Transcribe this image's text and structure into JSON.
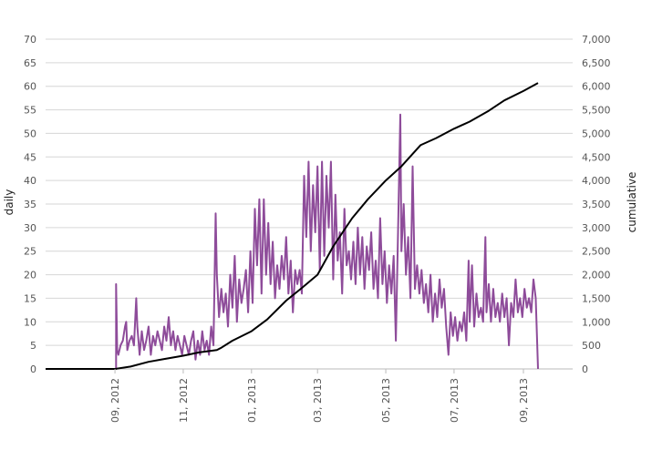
{
  "chart_data": {
    "type": "line",
    "y_left": {
      "label": "daily",
      "ticks": [
        0,
        5,
        10,
        15,
        20,
        25,
        30,
        35,
        40,
        45,
        50,
        55,
        60,
        65,
        70
      ],
      "tick_labels": [
        "0",
        "5",
        "10",
        "15",
        "20",
        "25",
        "30",
        "35",
        "40",
        "45",
        "50",
        "55",
        "60",
        "65",
        "70"
      ],
      "range": [
        0,
        70
      ]
    },
    "y_right": {
      "label": "cumulative",
      "ticks": [
        0,
        500,
        1000,
        1500,
        2000,
        2500,
        3000,
        3500,
        4000,
        4500,
        5000,
        5500,
        6000,
        6500,
        7000
      ],
      "tick_labels": [
        "0",
        "500",
        "1,000",
        "1,500",
        "2,000",
        "2,500",
        "3,000",
        "3,500",
        "4,000",
        "4,500",
        "5,000",
        "5,500",
        "6,000",
        "6,500",
        "7,000"
      ],
      "range": [
        0,
        7000
      ]
    },
    "x_axis": {
      "range": [
        "2012-07-01",
        "2013-10-15"
      ],
      "ticks": [
        "2012-09-01",
        "2012-11-01",
        "2013-01-01",
        "2013-03-01",
        "2013-05-01",
        "2013-07-01",
        "2013-09-01"
      ],
      "tick_labels": [
        "09, 2012",
        "11, 2012",
        "01, 2013",
        "03, 2013",
        "05, 2013",
        "07, 2013",
        "09, 2013"
      ]
    },
    "grid": "horizontal",
    "series": [
      {
        "color": "#8e4c9a",
        "axis": "left",
        "points": [
          [
            "2012-09-02",
            0
          ],
          [
            "2012-09-02",
            18
          ],
          [
            "2012-09-03",
            4
          ],
          [
            "2012-09-04",
            3
          ],
          [
            "2012-09-06",
            5
          ],
          [
            "2012-09-08",
            6
          ],
          [
            "2012-09-10",
            9
          ],
          [
            "2012-09-11",
            10
          ],
          [
            "2012-09-12",
            4
          ],
          [
            "2012-09-14",
            6
          ],
          [
            "2012-09-16",
            7
          ],
          [
            "2012-09-18",
            5
          ],
          [
            "2012-09-20",
            15
          ],
          [
            "2012-09-21",
            9
          ],
          [
            "2012-09-23",
            3
          ],
          [
            "2012-09-25",
            8
          ],
          [
            "2012-09-27",
            4
          ],
          [
            "2012-09-29",
            6
          ],
          [
            "2012-10-01",
            9
          ],
          [
            "2012-10-03",
            3
          ],
          [
            "2012-10-05",
            7
          ],
          [
            "2012-10-07",
            5
          ],
          [
            "2012-10-09",
            8
          ],
          [
            "2012-10-11",
            6
          ],
          [
            "2012-10-13",
            4
          ],
          [
            "2012-10-15",
            9
          ],
          [
            "2012-10-17",
            6
          ],
          [
            "2012-10-19",
            11
          ],
          [
            "2012-10-21",
            5
          ],
          [
            "2012-10-23",
            8
          ],
          [
            "2012-10-25",
            4
          ],
          [
            "2012-10-27",
            7
          ],
          [
            "2012-10-29",
            5
          ],
          [
            "2012-10-31",
            3
          ],
          [
            "2012-11-02",
            7
          ],
          [
            "2012-11-04",
            5
          ],
          [
            "2012-11-06",
            3
          ],
          [
            "2012-11-08",
            6
          ],
          [
            "2012-11-10",
            8
          ],
          [
            "2012-11-12",
            2
          ],
          [
            "2012-11-14",
            6
          ],
          [
            "2012-11-16",
            3
          ],
          [
            "2012-11-18",
            8
          ],
          [
            "2012-11-20",
            4
          ],
          [
            "2012-11-22",
            6
          ],
          [
            "2012-11-24",
            3
          ],
          [
            "2012-11-26",
            9
          ],
          [
            "2012-11-28",
            5
          ],
          [
            "2012-11-30",
            33
          ],
          [
            "2012-12-01",
            20
          ],
          [
            "2012-12-03",
            11
          ],
          [
            "2012-12-05",
            17
          ],
          [
            "2012-12-07",
            12
          ],
          [
            "2012-12-09",
            16
          ],
          [
            "2012-12-11",
            9
          ],
          [
            "2012-12-13",
            20
          ],
          [
            "2012-12-15",
            13
          ],
          [
            "2012-12-17",
            24
          ],
          [
            "2012-12-19",
            10
          ],
          [
            "2012-12-21",
            19
          ],
          [
            "2012-12-23",
            14
          ],
          [
            "2012-12-25",
            17
          ],
          [
            "2012-12-27",
            21
          ],
          [
            "2012-12-29",
            12
          ],
          [
            "2012-12-31",
            25
          ],
          [
            "2013-01-02",
            14
          ],
          [
            "2013-01-04",
            34
          ],
          [
            "2013-01-06",
            22
          ],
          [
            "2013-01-08",
            36
          ],
          [
            "2013-01-10",
            16
          ],
          [
            "2013-01-12",
            36
          ],
          [
            "2013-01-14",
            20
          ],
          [
            "2013-01-16",
            31
          ],
          [
            "2013-01-18",
            18
          ],
          [
            "2013-01-20",
            27
          ],
          [
            "2013-01-22",
            15
          ],
          [
            "2013-01-24",
            22
          ],
          [
            "2013-01-26",
            17
          ],
          [
            "2013-01-28",
            24
          ],
          [
            "2013-01-30",
            19
          ],
          [
            "2013-02-01",
            28
          ],
          [
            "2013-02-03",
            16
          ],
          [
            "2013-02-05",
            23
          ],
          [
            "2013-02-07",
            12
          ],
          [
            "2013-02-09",
            21
          ],
          [
            "2013-02-11",
            18
          ],
          [
            "2013-02-13",
            21
          ],
          [
            "2013-02-15",
            16
          ],
          [
            "2013-02-17",
            41
          ],
          [
            "2013-02-19",
            28
          ],
          [
            "2013-02-21",
            44
          ],
          [
            "2013-02-23",
            25
          ],
          [
            "2013-02-25",
            39
          ],
          [
            "2013-02-27",
            29
          ],
          [
            "2013-03-01",
            43
          ],
          [
            "2013-03-03",
            21
          ],
          [
            "2013-03-05",
            44
          ],
          [
            "2013-03-07",
            24
          ],
          [
            "2013-03-09",
            41
          ],
          [
            "2013-03-11",
            30
          ],
          [
            "2013-03-13",
            44
          ],
          [
            "2013-03-15",
            19
          ],
          [
            "2013-03-17",
            37
          ],
          [
            "2013-03-19",
            23
          ],
          [
            "2013-03-21",
            29
          ],
          [
            "2013-03-23",
            16
          ],
          [
            "2013-03-25",
            34
          ],
          [
            "2013-03-27",
            22
          ],
          [
            "2013-03-29",
            25
          ],
          [
            "2013-03-31",
            19
          ],
          [
            "2013-04-02",
            27
          ],
          [
            "2013-04-04",
            18
          ],
          [
            "2013-04-06",
            30
          ],
          [
            "2013-04-08",
            20
          ],
          [
            "2013-04-10",
            28
          ],
          [
            "2013-04-12",
            17
          ],
          [
            "2013-04-14",
            26
          ],
          [
            "2013-04-16",
            21
          ],
          [
            "2013-04-18",
            29
          ],
          [
            "2013-04-20",
            17
          ],
          [
            "2013-04-22",
            23
          ],
          [
            "2013-04-24",
            15
          ],
          [
            "2013-04-26",
            32
          ],
          [
            "2013-04-28",
            18
          ],
          [
            "2013-04-30",
            25
          ],
          [
            "2013-05-02",
            14
          ],
          [
            "2013-05-04",
            22
          ],
          [
            "2013-05-06",
            16
          ],
          [
            "2013-05-08",
            24
          ],
          [
            "2013-05-10",
            6
          ],
          [
            "2013-05-12",
            30
          ],
          [
            "2013-05-14",
            54
          ],
          [
            "2013-05-15",
            25
          ],
          [
            "2013-05-17",
            35
          ],
          [
            "2013-05-19",
            20
          ],
          [
            "2013-05-21",
            28
          ],
          [
            "2013-05-23",
            15
          ],
          [
            "2013-05-25",
            43
          ],
          [
            "2013-05-27",
            17
          ],
          [
            "2013-05-29",
            22
          ],
          [
            "2013-05-31",
            16
          ],
          [
            "2013-06-02",
            21
          ],
          [
            "2013-06-04",
            14
          ],
          [
            "2013-06-06",
            18
          ],
          [
            "2013-06-08",
            12
          ],
          [
            "2013-06-10",
            20
          ],
          [
            "2013-06-12",
            10
          ],
          [
            "2013-06-14",
            16
          ],
          [
            "2013-06-16",
            11
          ],
          [
            "2013-06-18",
            19
          ],
          [
            "2013-06-20",
            13
          ],
          [
            "2013-06-22",
            17
          ],
          [
            "2013-06-24",
            9
          ],
          [
            "2013-06-26",
            3
          ],
          [
            "2013-06-28",
            12
          ],
          [
            "2013-06-30",
            7
          ],
          [
            "2013-07-02",
            11
          ],
          [
            "2013-07-04",
            6
          ],
          [
            "2013-07-06",
            10
          ],
          [
            "2013-07-08",
            8
          ],
          [
            "2013-07-10",
            12
          ],
          [
            "2013-07-12",
            6
          ],
          [
            "2013-07-14",
            23
          ],
          [
            "2013-07-15",
            10
          ],
          [
            "2013-07-17",
            22
          ],
          [
            "2013-07-19",
            9
          ],
          [
            "2013-07-21",
            16
          ],
          [
            "2013-07-23",
            11
          ],
          [
            "2013-07-25",
            13
          ],
          [
            "2013-07-27",
            10
          ],
          [
            "2013-07-29",
            28
          ],
          [
            "2013-07-30",
            12
          ],
          [
            "2013-08-01",
            18
          ],
          [
            "2013-08-03",
            10
          ],
          [
            "2013-08-05",
            17
          ],
          [
            "2013-08-07",
            11
          ],
          [
            "2013-08-09",
            14
          ],
          [
            "2013-08-11",
            10
          ],
          [
            "2013-08-13",
            16
          ],
          [
            "2013-08-15",
            11
          ],
          [
            "2013-08-17",
            15
          ],
          [
            "2013-08-19",
            5
          ],
          [
            "2013-08-21",
            14
          ],
          [
            "2013-08-23",
            11
          ],
          [
            "2013-08-25",
            19
          ],
          [
            "2013-08-27",
            12
          ],
          [
            "2013-08-29",
            15
          ],
          [
            "2013-08-31",
            11
          ],
          [
            "2013-09-02",
            17
          ],
          [
            "2013-09-04",
            13
          ],
          [
            "2013-09-06",
            15
          ],
          [
            "2013-09-08",
            12
          ],
          [
            "2013-09-10",
            19
          ],
          [
            "2013-09-12",
            15
          ],
          [
            "2013-09-14",
            0
          ]
        ]
      },
      {
        "color": "#000000",
        "axis": "right",
        "points": [
          [
            "2012-07-01",
            0
          ],
          [
            "2012-09-01",
            0
          ],
          [
            "2012-09-15",
            50
          ],
          [
            "2012-10-01",
            150
          ],
          [
            "2012-10-15",
            210
          ],
          [
            "2012-11-01",
            280
          ],
          [
            "2012-11-15",
            350
          ],
          [
            "2012-12-01",
            400
          ],
          [
            "2012-12-05",
            450
          ],
          [
            "2012-12-15",
            600
          ],
          [
            "2013-01-01",
            800
          ],
          [
            "2013-01-15",
            1050
          ],
          [
            "2013-02-01",
            1450
          ],
          [
            "2013-02-15",
            1720
          ],
          [
            "2013-03-01",
            2000
          ],
          [
            "2013-03-15",
            2600
          ],
          [
            "2013-04-01",
            3200
          ],
          [
            "2013-04-15",
            3600
          ],
          [
            "2013-05-01",
            4000
          ],
          [
            "2013-05-15",
            4300
          ],
          [
            "2013-06-01",
            4750
          ],
          [
            "2013-06-15",
            4900
          ],
          [
            "2013-07-01",
            5100
          ],
          [
            "2013-07-15",
            5250
          ],
          [
            "2013-08-01",
            5480
          ],
          [
            "2013-08-15",
            5700
          ],
          [
            "2013-09-01",
            5900
          ],
          [
            "2013-09-14",
            6070
          ]
        ]
      }
    ]
  }
}
